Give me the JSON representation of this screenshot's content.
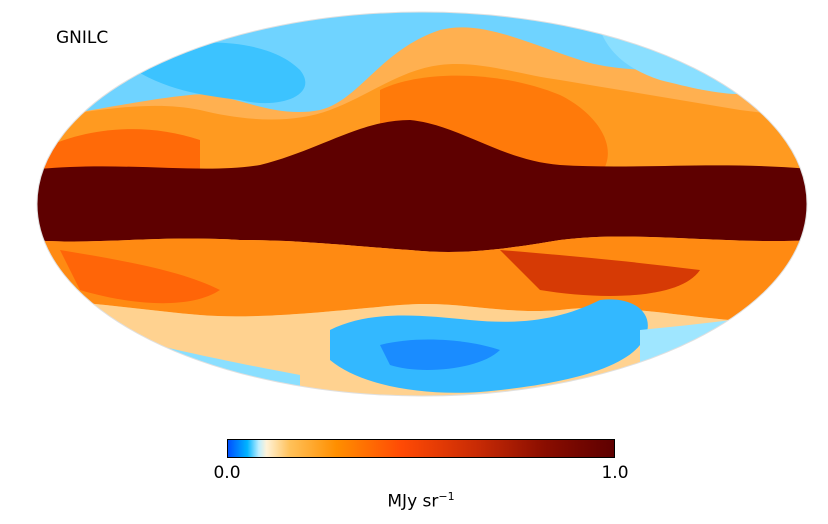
{
  "title": "GNILC",
  "projection": "mollweide",
  "colormap": {
    "name": "planck",
    "stops": [
      "#0050ff",
      "#00b4ff",
      "#9fe6ff",
      "#fff3d8",
      "#ffc15a",
      "#ff8f00",
      "#ff4a05",
      "#c72a05",
      "#8a0d00",
      "#5e0000"
    ]
  },
  "colorbar": {
    "min_label": "0.0",
    "max_label": "1.0",
    "unit_base": "MJy sr",
    "unit_exponent": "−1"
  }
}
